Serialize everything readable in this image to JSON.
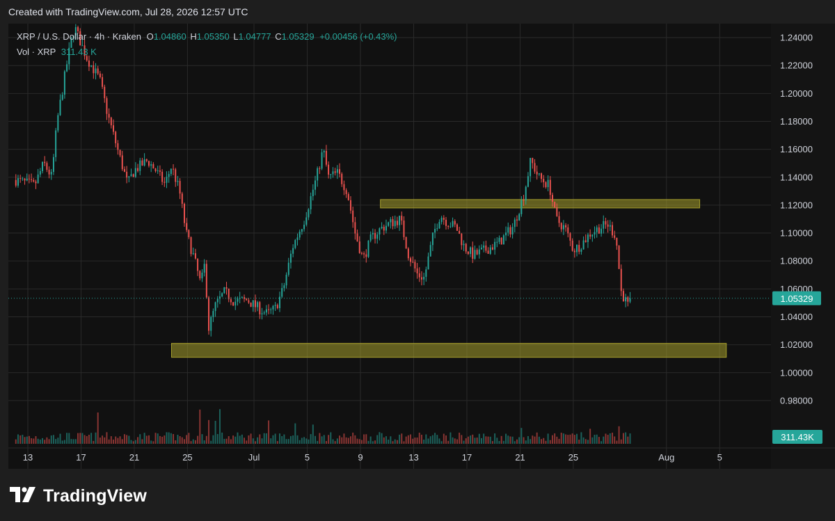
{
  "header": {
    "created_text": "Created with TradingView.com, Jul 28, 2026 12:57 UTC"
  },
  "legend": {
    "symbol": "XRP / U.S. Dollar · 4h · Kraken",
    "o_label": "O",
    "o_value": "1.04860",
    "h_label": "H",
    "h_value": "1.05350",
    "l_label": "L",
    "l_value": "1.04777",
    "c_label": "C",
    "c_value": "1.05329",
    "change": "+0.00456 (+0.43%)",
    "vol_label": "Vol · XRP",
    "vol_value": "311.43 K"
  },
  "footer": {
    "brand": "TradingView"
  },
  "colors": {
    "up": "#26a69a",
    "down": "#ef5350",
    "zone": "#a59e2c",
    "grid": "#2a2a2a",
    "background": "#111111"
  },
  "chart_data": {
    "type": "candlestick",
    "title": "XRP / U.S. Dollar · 4h · Kraken",
    "timeframe": "4h",
    "ylim": [
      0.965,
      1.248
    ],
    "y_ticks": [
      "1.24000",
      "1.22000",
      "1.20000",
      "1.18000",
      "1.16000",
      "1.14000",
      "1.12000",
      "1.10000",
      "1.08000",
      "1.06000",
      "1.04000",
      "1.02000",
      "1.00000",
      "0.98000"
    ],
    "x_ticks": [
      {
        "label": "13",
        "day": 0
      },
      {
        "label": "17",
        "day": 4
      },
      {
        "label": "21",
        "day": 8
      },
      {
        "label": "25",
        "day": 12
      },
      {
        "label": "Jul",
        "day": 17
      },
      {
        "label": "5",
        "day": 21
      },
      {
        "label": "9",
        "day": 25
      },
      {
        "label": "13",
        "day": 29
      },
      {
        "label": "17",
        "day": 33
      },
      {
        "label": "21",
        "day": 37
      },
      {
        "label": "25",
        "day": 41
      },
      {
        "label": "Aug",
        "day": 48
      },
      {
        "label": "5",
        "day": 52
      }
    ],
    "last_price": 1.05329,
    "last_price_label": "1.05329",
    "last_volume_label": "311.43K",
    "zones": [
      {
        "name": "resistance",
        "from_day": 26.5,
        "to_day": 50.5,
        "low": 1.118,
        "high": 1.124
      },
      {
        "name": "support",
        "from_day": 10.8,
        "to_day": 52.5,
        "low": 1.011,
        "high": 1.021
      }
    ],
    "path": [
      [
        -0.9,
        1.138
      ],
      [
        0.5,
        1.134
      ],
      [
        1.2,
        1.15
      ],
      [
        1.8,
        1.14
      ],
      [
        2.2,
        1.18
      ],
      [
        3.0,
        1.225
      ],
      [
        3.5,
        1.248
      ],
      [
        4.4,
        1.226
      ],
      [
        5.4,
        1.21
      ],
      [
        6.0,
        1.185
      ],
      [
        6.8,
        1.158
      ],
      [
        7.5,
        1.135
      ],
      [
        8.0,
        1.145
      ],
      [
        9.0,
        1.152
      ],
      [
        9.6,
        1.145
      ],
      [
        10.3,
        1.135
      ],
      [
        10.8,
        1.148
      ],
      [
        11.4,
        1.13
      ],
      [
        11.9,
        1.1
      ],
      [
        12.5,
        1.082
      ],
      [
        13.0,
        1.063
      ],
      [
        13.3,
        1.078
      ],
      [
        13.6,
        1.032
      ],
      [
        14.1,
        1.048
      ],
      [
        14.8,
        1.058
      ],
      [
        15.5,
        1.051
      ],
      [
        16.5,
        1.052
      ],
      [
        17.2,
        1.047
      ],
      [
        18.0,
        1.042
      ],
      [
        18.6,
        1.046
      ],
      [
        19.2,
        1.06
      ],
      [
        19.9,
        1.09
      ],
      [
        20.8,
        1.11
      ],
      [
        21.7,
        1.14
      ],
      [
        22.2,
        1.16
      ],
      [
        22.6,
        1.14
      ],
      [
        23.3,
        1.143
      ],
      [
        24.0,
        1.13
      ],
      [
        24.6,
        1.1
      ],
      [
        25.2,
        1.081
      ],
      [
        25.8,
        1.096
      ],
      [
        26.5,
        1.103
      ],
      [
        27.2,
        1.107
      ],
      [
        28.0,
        1.11
      ],
      [
        28.6,
        1.085
      ],
      [
        29.3,
        1.07
      ],
      [
        29.8,
        1.068
      ],
      [
        30.5,
        1.1
      ],
      [
        31.0,
        1.113
      ],
      [
        31.5,
        1.108
      ],
      [
        32.2,
        1.104
      ],
      [
        32.8,
        1.09
      ],
      [
        33.5,
        1.084
      ],
      [
        34.4,
        1.088
      ],
      [
        35.4,
        1.093
      ],
      [
        36.5,
        1.105
      ],
      [
        37.3,
        1.128
      ],
      [
        37.8,
        1.152
      ],
      [
        38.4,
        1.14
      ],
      [
        39.2,
        1.134
      ],
      [
        39.7,
        1.11
      ],
      [
        40.4,
        1.103
      ],
      [
        41.0,
        1.088
      ],
      [
        41.5,
        1.091
      ],
      [
        42.3,
        1.1
      ],
      [
        43.0,
        1.104
      ],
      [
        43.6,
        1.106
      ],
      [
        44.2,
        1.098
      ],
      [
        44.6,
        1.058
      ],
      [
        45.1,
        1.048
      ],
      [
        45.2,
        1.053
      ]
    ],
    "vol_spikes": [
      [
        5.2,
        0.75
      ],
      [
        12.9,
        0.82
      ],
      [
        13.6,
        0.57
      ],
      [
        14.1,
        0.55
      ],
      [
        14.5,
        0.83
      ],
      [
        18.1,
        0.56
      ],
      [
        20.1,
        0.49
      ],
      [
        21.4,
        0.46
      ],
      [
        37.1,
        0.38
      ],
      [
        42.3,
        0.36
      ],
      [
        44.4,
        0.42
      ]
    ]
  }
}
